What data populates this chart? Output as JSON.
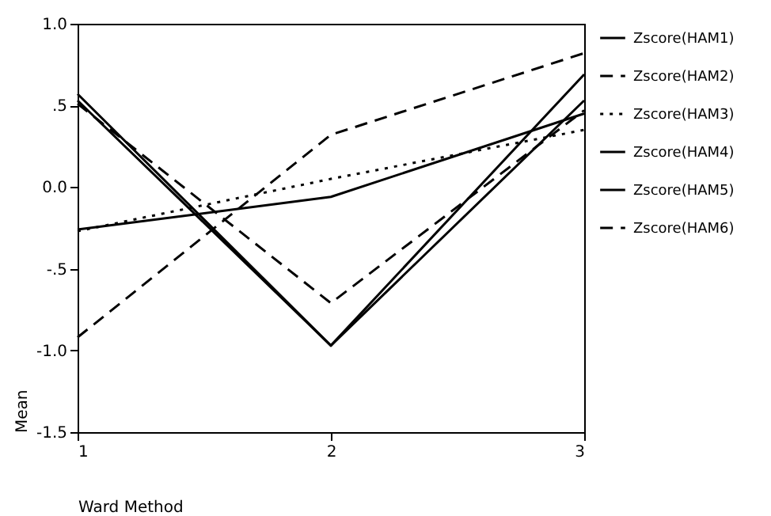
{
  "chart_data": {
    "type": "line",
    "xlabel": "Ward Method",
    "ylabel": "Mean",
    "x": [
      1,
      2,
      3
    ],
    "xlim": [
      1,
      3
    ],
    "xticks": [
      1,
      2,
      3
    ],
    "ylim": [
      -1.5,
      1.0
    ],
    "yticks": [
      {
        "value": 1.0,
        "label": "1.0"
      },
      {
        "value": 0.5,
        "label": ".5"
      },
      {
        "value": 0,
        "label": "0.0"
      },
      {
        "value": -0.5,
        "label": "-.5"
      },
      {
        "value": -1.0,
        "label": "-1.0"
      },
      {
        "value": -1.5,
        "label": "-1.5"
      }
    ],
    "grid": false,
    "legend": "right",
    "marker": "none",
    "series": [
      {
        "name": "Zscore(HAM1)",
        "color": "#000000",
        "line_style": "solid",
        "values": [
          -0.26,
          -0.06,
          0.45
        ]
      },
      {
        "name": "Zscore(HAM2)",
        "color": "#000000",
        "line_style": "dashed",
        "values": [
          -0.92,
          0.32,
          0.82
        ]
      },
      {
        "name": "Zscore(HAM3)",
        "color": "#000000",
        "line_style": "dotted",
        "values": [
          -0.27,
          0.05,
          0.35
        ]
      },
      {
        "name": "Zscore(HAM4)",
        "color": "#000000",
        "line_style": "solid",
        "values": [
          0.53,
          -0.97,
          0.69
        ]
      },
      {
        "name": "Zscore(HAM5)",
        "color": "#000000",
        "line_style": "solid",
        "values": [
          0.57,
          -0.97,
          0.53
        ]
      },
      {
        "name": "Zscore(HAM6)",
        "color": "#000000",
        "line_style": "dashed",
        "values": [
          0.51,
          -0.71,
          0.47
        ]
      }
    ]
  }
}
